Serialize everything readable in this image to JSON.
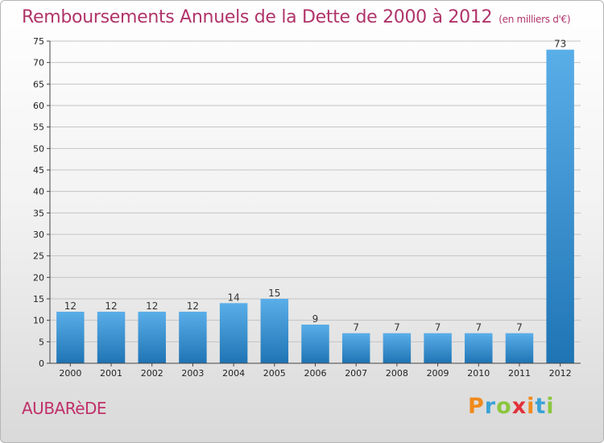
{
  "page": {
    "title": "Remboursements Annuels de la Dette de 2000 à 2012",
    "unit": "(en milliers d'€)",
    "commune": "AUBARèDE",
    "logo": {
      "letters": [
        "P",
        "r",
        "o",
        "x",
        "i",
        "t",
        "i"
      ],
      "colors": [
        "#f08a1c",
        "#3aa3d6",
        "#8cc63f",
        "#e2313a",
        "#f08a1c",
        "#3aa3d6",
        "#8cc63f"
      ]
    }
  },
  "chart_data": {
    "type": "bar",
    "categories": [
      "2000",
      "2001",
      "2002",
      "2003",
      "2004",
      "2005",
      "2006",
      "2007",
      "2008",
      "2009",
      "2010",
      "2011",
      "2012"
    ],
    "values": [
      12,
      12,
      12,
      12,
      14,
      15,
      9,
      7,
      7,
      7,
      7,
      7,
      73
    ],
    "ylim": [
      0,
      75
    ],
    "yticks": [
      0,
      5,
      10,
      15,
      20,
      25,
      30,
      35,
      40,
      45,
      50,
      55,
      60,
      65,
      70,
      75
    ],
    "grid": true,
    "bar_color_top": "#5aaee8",
    "bar_color_bottom": "#1f74b4"
  }
}
